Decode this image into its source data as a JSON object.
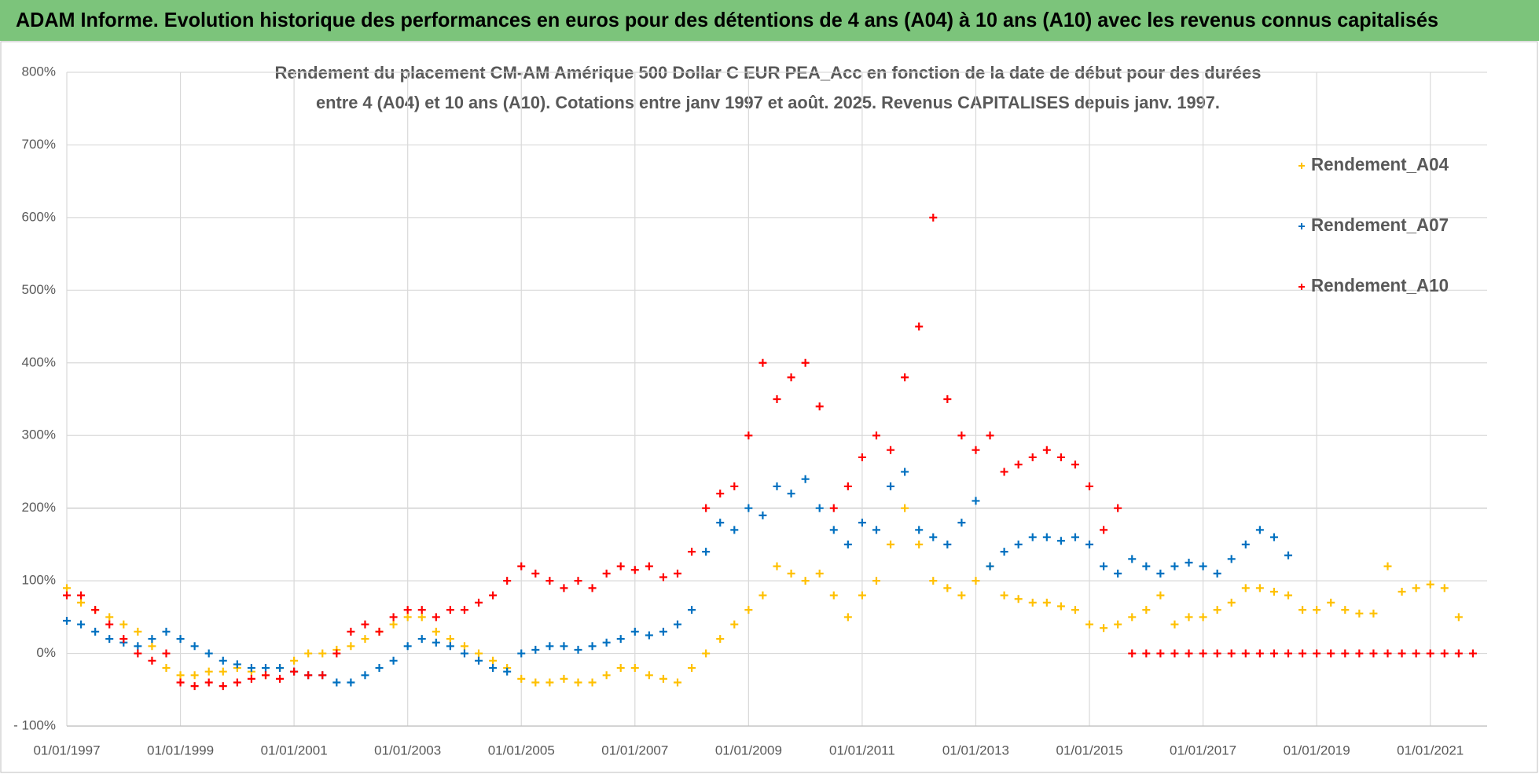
{
  "header": {
    "title": "ADAM Informe. Evolution historique des performances en euros pour des détentions de 4 ans (A04) à 10 ans (A10) avec les revenus connus capitalisés"
  },
  "chart_data": {
    "type": "scatter",
    "title": [
      "Rendement du placement CM-AM Amérique 500 Dollar C EUR PEA_Acc en fonction de la date de début pour des durées",
      "entre 4 (A04) et 10 ans (A10). Cotations entre janv 1997 et août. 2025. Revenus CAPITALISES depuis janv. 1997."
    ],
    "x": [
      "01/01/1997",
      "01/04/1997",
      "01/07/1997",
      "01/10/1997",
      "01/01/1998",
      "01/04/1998",
      "01/07/1998",
      "01/10/1998",
      "01/01/1999",
      "01/04/1999",
      "01/07/1999",
      "01/10/1999",
      "01/01/2000",
      "01/04/2000",
      "01/07/2000",
      "01/10/2000",
      "01/01/2001",
      "01/04/2001",
      "01/07/2001",
      "01/10/2001",
      "01/01/2002",
      "01/04/2002",
      "01/07/2002",
      "01/10/2002",
      "01/01/2003",
      "01/04/2003",
      "01/07/2003",
      "01/10/2003",
      "01/01/2004",
      "01/04/2004",
      "01/07/2004",
      "01/10/2004",
      "01/01/2005",
      "01/04/2005",
      "01/07/2005",
      "01/10/2005",
      "01/01/2006",
      "01/04/2006",
      "01/07/2006",
      "01/10/2006",
      "01/01/2007",
      "01/04/2007",
      "01/07/2007",
      "01/10/2007",
      "01/01/2008",
      "01/04/2008",
      "01/07/2008",
      "01/10/2008",
      "01/01/2009",
      "01/04/2009",
      "01/07/2009",
      "01/10/2009",
      "01/01/2010",
      "01/04/2010",
      "01/07/2010",
      "01/10/2010",
      "01/01/2011",
      "01/04/2011",
      "01/07/2011",
      "01/10/2011",
      "01/01/2012",
      "01/04/2012",
      "01/07/2012",
      "01/10/2012",
      "01/01/2013",
      "01/04/2013",
      "01/07/2013",
      "01/10/2013",
      "01/01/2014",
      "01/04/2014",
      "01/07/2014",
      "01/10/2014",
      "01/01/2015",
      "01/04/2015",
      "01/07/2015",
      "01/10/2015",
      "01/01/2016",
      "01/04/2016",
      "01/07/2016",
      "01/10/2016",
      "01/01/2017",
      "01/04/2017",
      "01/07/2017",
      "01/10/2017",
      "01/01/2018",
      "01/04/2018",
      "01/07/2018",
      "01/10/2018",
      "01/01/2019",
      "01/04/2019",
      "01/07/2019",
      "01/10/2019",
      "01/01/2020",
      "01/04/2020",
      "01/07/2020",
      "01/10/2020",
      "01/01/2021",
      "01/04/2021",
      "01/07/2021",
      "01/10/2021"
    ],
    "series": [
      {
        "name": "Rendement_A04",
        "color": "#ffc000",
        "values": [
          90,
          70,
          60,
          50,
          40,
          30,
          10,
          -20,
          -30,
          -30,
          -25,
          -25,
          -20,
          -25,
          -30,
          -20,
          -10,
          0,
          0,
          5,
          10,
          20,
          30,
          40,
          50,
          50,
          30,
          20,
          10,
          0,
          -10,
          -20,
          -35,
          -40,
          -40,
          -35,
          -40,
          -40,
          -30,
          -20,
          -20,
          -30,
          -35,
          -40,
          -20,
          0,
          20,
          40,
          60,
          80,
          120,
          110,
          100,
          110,
          80,
          50,
          80,
          100,
          150,
          200,
          150,
          100,
          90,
          80,
          100,
          120,
          80,
          75,
          70,
          70,
          65,
          60,
          40,
          35,
          40,
          50,
          60,
          80,
          40,
          50,
          50,
          60,
          70,
          90,
          90,
          85,
          80,
          60,
          60,
          70,
          60,
          55,
          55,
          120,
          85,
          90,
          95,
          90,
          50,
          null
        ]
      },
      {
        "name": "Rendement_A07",
        "color": "#0070c0",
        "values": [
          45,
          40,
          30,
          20,
          15,
          10,
          20,
          30,
          20,
          10,
          0,
          -10,
          -15,
          -20,
          -20,
          -20,
          -25,
          -30,
          -30,
          -40,
          -40,
          -30,
          -20,
          -10,
          10,
          20,
          15,
          10,
          0,
          -10,
          -20,
          -25,
          0,
          5,
          10,
          10,
          5,
          10,
          15,
          20,
          30,
          25,
          30,
          40,
          60,
          140,
          180,
          170,
          200,
          190,
          230,
          220,
          240,
          200,
          170,
          150,
          180,
          170,
          230,
          250,
          170,
          160,
          150,
          180,
          210,
          120,
          140,
          150,
          160,
          160,
          155,
          160,
          150,
          120,
          110,
          130,
          120,
          110,
          120,
          125,
          120,
          110,
          130,
          150,
          170,
          160,
          135,
          null,
          null,
          null,
          null,
          null,
          null,
          null,
          null,
          null,
          null,
          null,
          null,
          null
        ]
      },
      {
        "name": "Rendement_A10",
        "color": "#ff0000",
        "values": [
          80,
          80,
          60,
          40,
          20,
          0,
          -10,
          0,
          -40,
          -45,
          -40,
          -45,
          -40,
          -35,
          -30,
          -35,
          -25,
          -30,
          -30,
          0,
          30,
          40,
          30,
          50,
          60,
          60,
          50,
          60,
          60,
          70,
          80,
          100,
          120,
          110,
          100,
          90,
          100,
          90,
          110,
          120,
          115,
          120,
          105,
          110,
          140,
          200,
          220,
          230,
          300,
          400,
          350,
          380,
          400,
          340,
          200,
          230,
          270,
          300,
          280,
          380,
          450,
          600,
          350,
          300,
          280,
          300,
          250,
          260,
          270,
          280,
          270,
          260,
          230,
          170,
          200,
          0,
          0,
          0,
          0,
          0,
          0,
          0,
          0,
          0,
          0,
          0,
          0,
          0,
          0,
          0,
          0,
          0,
          0,
          0,
          0,
          0,
          0,
          0,
          0,
          0
        ]
      }
    ],
    "xlim": [
      "01/01/1997",
      "01/01/2022"
    ],
    "xticks": [
      "01/01/1997",
      "01/01/1999",
      "01/01/2001",
      "01/01/2003",
      "01/01/2005",
      "01/01/2007",
      "01/01/2009",
      "01/01/2011",
      "01/01/2013",
      "01/01/2015",
      "01/01/2017",
      "01/01/2019",
      "01/01/2021"
    ],
    "ylim": [
      -100,
      800
    ],
    "yticks": [
      {
        "value": -100,
        "label": "- 100%"
      },
      {
        "value": 0,
        "label": "0%"
      },
      {
        "value": 100,
        "label": "100%"
      },
      {
        "value": 200,
        "label": "200%"
      },
      {
        "value": 300,
        "label": "300%"
      },
      {
        "value": 400,
        "label": "400%"
      },
      {
        "value": 500,
        "label": "500%"
      },
      {
        "value": 600,
        "label": "600%"
      },
      {
        "value": 700,
        "label": "700%"
      },
      {
        "value": 800,
        "label": "800%"
      }
    ],
    "grid": true,
    "legend": "top-right"
  }
}
